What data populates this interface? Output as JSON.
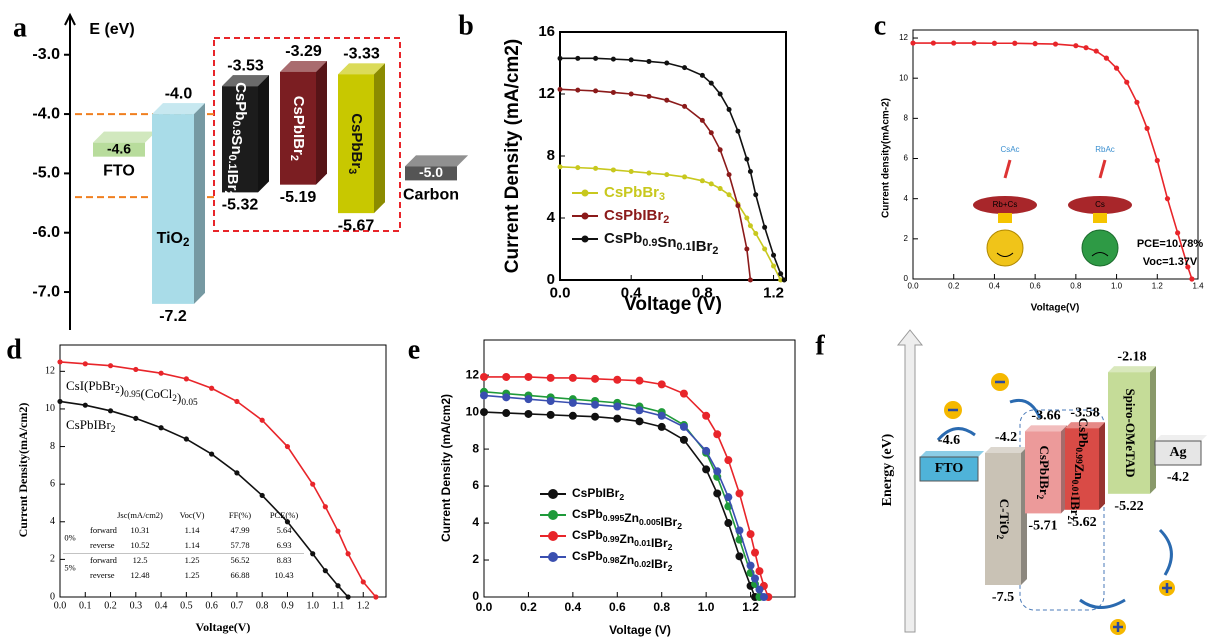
{
  "chart_data": [
    {
      "type": "energy",
      "label": "a",
      "ylabel": "E (eV)",
      "ylim": [
        -7.64,
        -2.33
      ],
      "yticks": [
        {
          "value": -3,
          "label": "-3.0"
        },
        {
          "value": -4,
          "label": "-4.0"
        },
        {
          "value": -5,
          "label": "-5.0"
        },
        {
          "value": -6,
          "label": "-6.0"
        },
        {
          "value": -7,
          "label": "-7.0"
        }
      ],
      "reference_lines": [
        -4,
        -5.4
      ],
      "series": [
        {
          "name": "FTO",
          "color": "#b8dc9c",
          "values": [
            -4.6
          ]
        },
        {
          "name": "TiO2",
          "color": "#a9dce8",
          "values": [
            -4,
            -7.2
          ],
          "value_labels": [
            "-4.0",
            "-7.2"
          ]
        },
        {
          "name": "CsPb0.9Sn0.1IBr2",
          "color": "#1c1c1c",
          "values": [
            -3.53,
            -5.32
          ]
        },
        {
          "name": "CsPbIBr2",
          "color": "#7b1e22",
          "values": [
            -3.29,
            -5.19
          ]
        },
        {
          "name": "CsPbBr3",
          "color": "#c8c800",
          "values": [
            -3.33,
            -5.67
          ]
        },
        {
          "name": "Carbon",
          "color": "#555555",
          "values": [
            -5
          ],
          "value_labels": [
            "-5.0"
          ]
        }
      ]
    },
    {
      "type": "line",
      "label": "b",
      "xlabel": "Voltage (V)",
      "ylabel": "Current Density (mA/cm2)",
      "xlim": [
        0,
        1.27
      ],
      "ylim": [
        0,
        16
      ],
      "xticks": [
        {
          "value": 0,
          "label": "0.0"
        },
        0.4,
        0.8,
        1.2
      ],
      "yticks": [
        0,
        4,
        8,
        12,
        16
      ],
      "legend": "lower left",
      "x": [
        0,
        0.1,
        0.2,
        0.3,
        0.4,
        0.5,
        0.6,
        0.7,
        0.8,
        0.85,
        0.9,
        0.95,
        1.0,
        1.05,
        1.07,
        1.1,
        1.15,
        1.2,
        1.24,
        1.26
      ],
      "series": [
        {
          "name": "CsPbBr3",
          "color": "#c8c81e",
          "values": [
            7.3,
            7.25,
            7.2,
            7.1,
            7.0,
            6.9,
            6.8,
            6.65,
            6.4,
            6.2,
            5.9,
            5.5,
            4.9,
            4.0,
            3.5,
            3.0,
            2.0,
            0.9,
            0,
            null
          ]
        },
        {
          "name": "CsPbIBr2",
          "color": "#8b1a1a",
          "values": [
            12.3,
            12.25,
            12.2,
            12.1,
            12.0,
            11.85,
            11.6,
            11.2,
            10.3,
            9.5,
            8.4,
            6.8,
            4.8,
            2.0,
            0,
            null,
            null,
            null,
            null,
            null
          ]
        },
        {
          "name": "CsPb0.9Sn0.1IBr2",
          "color": "#111111",
          "values": [
            14.3,
            14.3,
            14.3,
            14.25,
            14.2,
            14.1,
            14.0,
            13.7,
            13.2,
            12.7,
            12.0,
            11.0,
            9.6,
            7.8,
            7.0,
            5.5,
            3.4,
            1.6,
            0.4,
            0
          ]
        }
      ]
    },
    {
      "type": "line",
      "label": "c",
      "xlabel": "Voltage(V)",
      "ylabel": "Current density(mAcm-2)",
      "xlim": [
        0,
        1.4
      ],
      "ylim": [
        0,
        12.4
      ],
      "xticks": [
        {
          "value": 0,
          "label": "0.0"
        },
        0.2,
        0.4,
        0.6,
        0.8,
        {
          "value": 1,
          "label": "1.0"
        },
        1.2,
        1.4
      ],
      "yticks": [
        0,
        2,
        4,
        6,
        8,
        10,
        12
      ],
      "annotations": [
        "PCE=10.78%",
        "Voc=1.37V",
        "CsAc",
        "RbAc",
        "Rb+Cs",
        "Cs"
      ],
      "x": [
        0,
        0.1,
        0.2,
        0.3,
        0.4,
        0.5,
        0.6,
        0.7,
        0.8,
        0.85,
        0.9,
        0.95,
        1.0,
        1.05,
        1.1,
        1.15,
        1.2,
        1.25,
        1.3,
        1.35,
        1.37
      ],
      "series": [
        {
          "color": "#e8252a",
          "values": [
            11.75,
            11.75,
            11.75,
            11.75,
            11.74,
            11.74,
            11.72,
            11.7,
            11.62,
            11.52,
            11.35,
            11.0,
            10.5,
            9.8,
            8.8,
            7.5,
            5.9,
            4.0,
            2.3,
            0.6,
            0
          ]
        }
      ]
    },
    {
      "type": "line",
      "label": "d",
      "xlabel": "Voltage(V)",
      "ylabel": "Current Density(mA/cm2)",
      "xlim": [
        0,
        1.29
      ],
      "ylim": [
        0,
        13.4
      ],
      "xticks": [
        {
          "value": 0,
          "label": "0.0"
        },
        0.1,
        0.2,
        0.3,
        0.4,
        0.5,
        0.6,
        0.7,
        0.8,
        0.9,
        {
          "value": 1,
          "label": "1.0"
        },
        1.1,
        1.2
      ],
      "yticks": [
        0,
        2,
        4,
        6,
        8,
        10,
        12
      ],
      "legend": "inline",
      "x": [
        0,
        0.1,
        0.2,
        0.3,
        0.4,
        0.5,
        0.6,
        0.7,
        0.8,
        0.9,
        1.0,
        1.05,
        1.1,
        1.14,
        1.2,
        1.25
      ],
      "series": [
        {
          "name": "CsI(PbBr2)0.95(CoCl2)0.05",
          "color": "#e8252a",
          "values": [
            12.5,
            12.4,
            12.3,
            12.1,
            11.9,
            11.6,
            11.1,
            10.4,
            9.4,
            8.0,
            6.0,
            4.8,
            3.5,
            2.3,
            0.8,
            0
          ]
        },
        {
          "name": "CsPbIBr2",
          "color": "#111111",
          "values": [
            10.4,
            10.2,
            9.9,
            9.5,
            9.0,
            8.4,
            7.6,
            6.6,
            5.4,
            4.0,
            2.3,
            1.4,
            0.6,
            0,
            null,
            null
          ]
        }
      ],
      "table": {
        "header": [
          "Jsc(mA/cm2)",
          "Voc(V)",
          "FF(%)",
          "PCE(%)"
        ],
        "groups": [
          {
            "label": "0%",
            "rows": [
              [
                "forward",
                10.31,
                1.14,
                47.99,
                5.64
              ],
              [
                "reverse",
                10.52,
                1.14,
                57.78,
                6.93
              ]
            ]
          },
          {
            "label": "5%",
            "rows": [
              [
                "forward",
                12.5,
                1.25,
                56.52,
                8.83
              ],
              [
                "reverse",
                12.48,
                1.25,
                66.88,
                10.43
              ]
            ]
          }
        ]
      }
    },
    {
      "type": "line",
      "label": "e",
      "xlabel": "Voltage (V)",
      "ylabel": "Current Density (mA/cm2)",
      "xlim": [
        0,
        1.4
      ],
      "ylim": [
        0,
        13.9
      ],
      "xticks": [
        {
          "value": 0,
          "label": "0.0"
        },
        0.2,
        0.4,
        0.6,
        0.8,
        {
          "value": 1,
          "label": "1.0"
        },
        1.2
      ],
      "yticks": [
        0,
        2,
        4,
        6,
        8,
        10,
        12
      ],
      "legend": "lower left",
      "x": [
        0,
        0.1,
        0.2,
        0.3,
        0.4,
        0.5,
        0.6,
        0.7,
        0.8,
        0.9,
        1.0,
        1.05,
        1.1,
        1.15,
        1.2,
        1.22,
        1.24,
        1.26,
        1.28
      ],
      "series": [
        {
          "name": "CsPbIBr2",
          "color": "#111111",
          "values": [
            10.0,
            9.95,
            9.9,
            9.85,
            9.8,
            9.75,
            9.65,
            9.5,
            9.2,
            8.5,
            6.9,
            5.6,
            4.0,
            2.2,
            0.6,
            0,
            null,
            null,
            null
          ]
        },
        {
          "name": "CsPb0.995Zn0.005IBr2",
          "color": "#1f9a3a",
          "values": [
            11.1,
            11.0,
            10.9,
            10.8,
            10.7,
            10.6,
            10.5,
            10.3,
            10.0,
            9.3,
            7.8,
            6.5,
            4.9,
            3.1,
            1.3,
            0.7,
            0,
            null,
            null
          ]
        },
        {
          "name": "CsPb0.99Zn0.01IBr2",
          "color": "#e8252a",
          "values": [
            11.9,
            11.9,
            11.9,
            11.85,
            11.85,
            11.8,
            11.75,
            11.7,
            11.5,
            11.0,
            9.8,
            8.8,
            7.4,
            5.6,
            3.4,
            2.4,
            1.4,
            0.6,
            0
          ]
        },
        {
          "name": "CsPb0.98Zn0.02IBr2",
          "color": "#3a4fb0",
          "values": [
            10.9,
            10.8,
            10.7,
            10.6,
            10.5,
            10.4,
            10.3,
            10.1,
            9.8,
            9.2,
            7.9,
            6.8,
            5.4,
            3.6,
            1.7,
            1.0,
            0.4,
            0,
            null
          ]
        }
      ]
    },
    {
      "type": "energy",
      "label": "f",
      "ylabel": "Energy (eV)",
      "ylim": [
        -7.7,
        -2.0
      ],
      "series": [
        {
          "name": "FTO",
          "color": "#4fb3d9",
          "values": [
            -4.6
          ]
        },
        {
          "name": "C-TiO2",
          "color": "#c9c2b5",
          "values": [
            -4.2,
            -7.5
          ]
        },
        {
          "name": "CsPbIBr2",
          "color": "#ec9a9a",
          "values": [
            -3.66,
            -5.71
          ]
        },
        {
          "name": "CsPb0.99Zn0.01IBr2",
          "color": "#d94b46",
          "values": [
            -3.58,
            -5.62
          ]
        },
        {
          "name": "Spiro-OMeTAD",
          "color": "#c5dc98",
          "values": [
            -2.18,
            -5.22
          ]
        },
        {
          "name": "Ag",
          "color": "#e6e6e6",
          "values": [
            -4.2
          ]
        }
      ]
    }
  ]
}
